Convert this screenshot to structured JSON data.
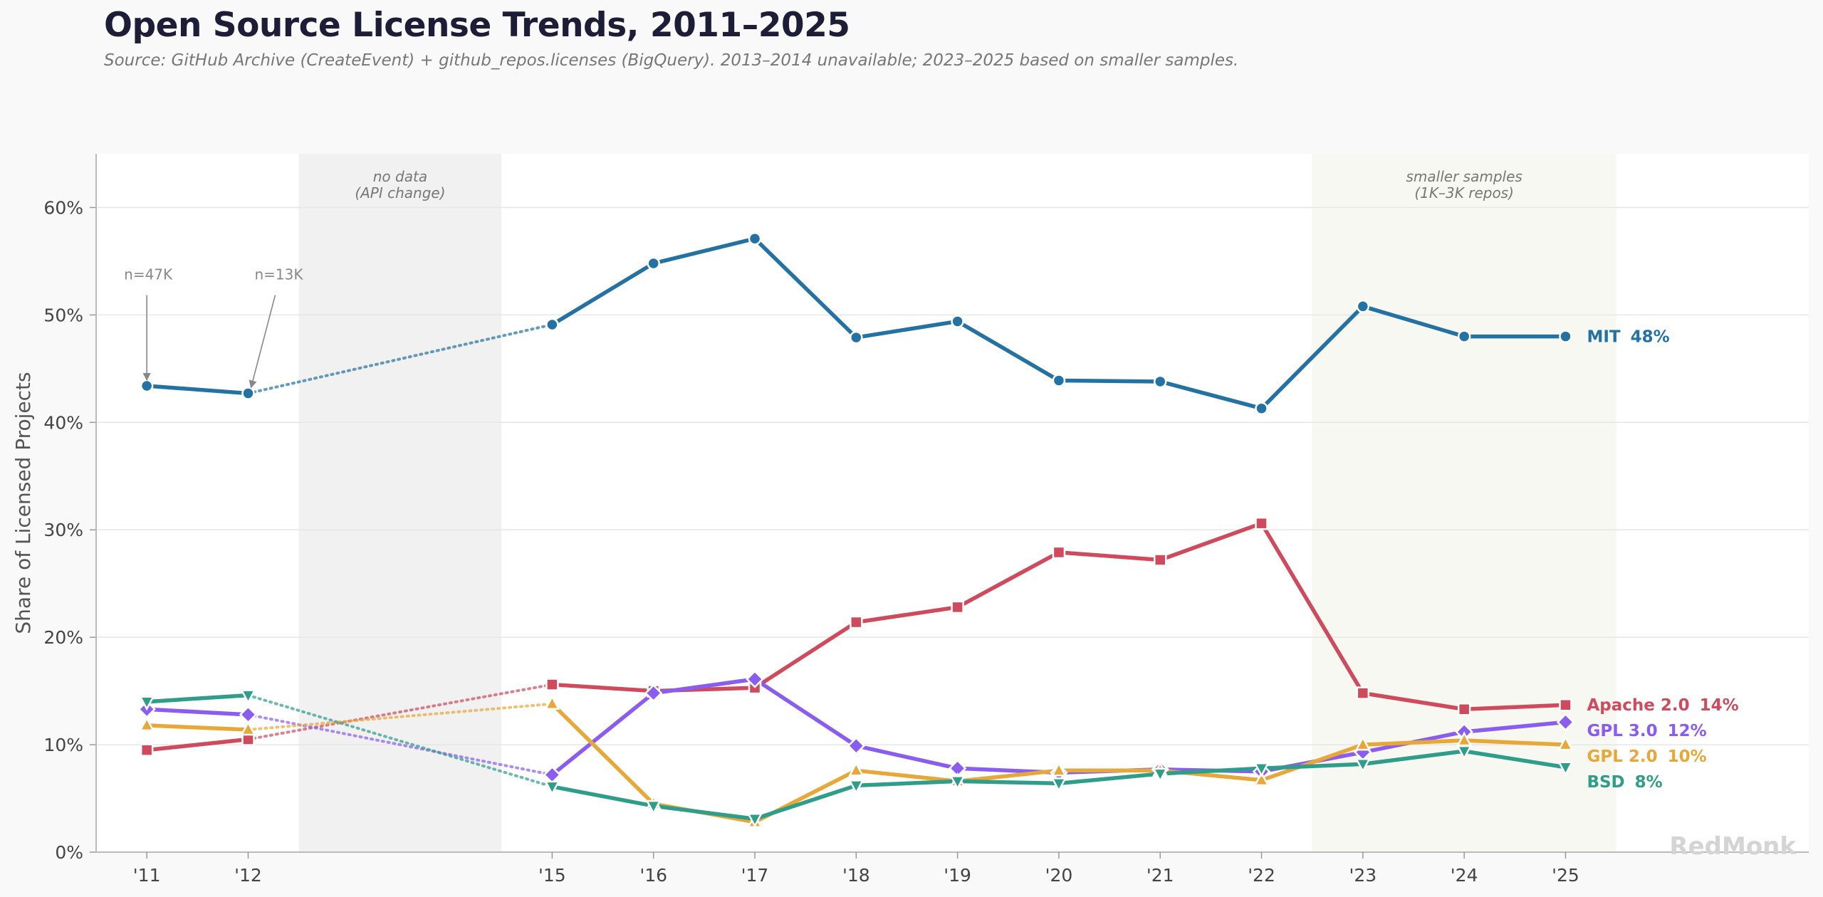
{
  "title": "Open Source License Trends, 2011–2025",
  "subtitle": "Source: GitHub Archive (CreateEvent) + github_repos.licenses (BigQuery). 2013–2014 unavailable; 2023–2025 based on smaller samples.",
  "watermark": "RedMonk",
  "chart_data": {
    "type": "line",
    "ylabel": "Share of Licensed Projects",
    "ylim": [
      0,
      65
    ],
    "yticks": [
      0,
      10,
      20,
      30,
      40,
      50,
      60
    ],
    "ytick_labels": [
      "0%",
      "10%",
      "20%",
      "30%",
      "40%",
      "50%",
      "60%"
    ],
    "x": [
      2011,
      2012,
      2015,
      2016,
      2017,
      2018,
      2019,
      2020,
      2021,
      2022,
      2023,
      2024,
      2025
    ],
    "xtick_labels": [
      "'11",
      "'12",
      "'15",
      "'16",
      "'17",
      "'18",
      "'19",
      "'20",
      "'21",
      "'22",
      "'23",
      "'24",
      "'25"
    ],
    "xlim": [
      2010.5,
      2027.4
    ],
    "grid": "horizontal",
    "bands": [
      {
        "from": 2012.5,
        "to": 2014.5,
        "label_lines": [
          "no data",
          "(API change)"
        ],
        "color": "#f1f1f1"
      },
      {
        "from": 2022.5,
        "to": 2025.5,
        "label_lines": [
          "smaller samples",
          "(1K–3K repos)"
        ],
        "color": "#f7f8f1"
      }
    ],
    "gap": {
      "from": 2012,
      "to": 2015,
      "style": "dotted"
    },
    "annotations": [
      {
        "text": "n=47K",
        "x": 2011,
        "y": 43.4
      },
      {
        "text": "n=13K",
        "x": 2012,
        "y": 42.7
      }
    ],
    "series": [
      {
        "name": "MIT",
        "end_label": "48%",
        "color": "#2471a3",
        "marker": "circle",
        "values": [
          43.4,
          42.7,
          49.1,
          54.8,
          57.1,
          47.9,
          49.4,
          43.9,
          43.8,
          41.3,
          50.8,
          48.0,
          48.0
        ]
      },
      {
        "name": "Apache 2.0",
        "end_label": "14%",
        "color": "#cf4a5c",
        "marker": "square",
        "values": [
          9.5,
          10.5,
          15.6,
          15.0,
          15.3,
          21.4,
          22.8,
          27.9,
          27.2,
          30.6,
          14.8,
          13.3,
          13.7
        ]
      },
      {
        "name": "GPL 3.0",
        "end_label": "12%",
        "color": "#8b5cf0",
        "marker": "diamond",
        "values": [
          13.3,
          12.8,
          7.2,
          14.8,
          16.1,
          9.9,
          7.8,
          7.4,
          7.7,
          7.5,
          9.3,
          11.2,
          12.1
        ]
      },
      {
        "name": "GPL 2.0",
        "end_label": "10%",
        "color": "#e8a838",
        "marker": "triangle-up",
        "values": [
          11.8,
          11.4,
          13.8,
          4.5,
          2.8,
          7.6,
          6.6,
          7.6,
          7.6,
          6.7,
          10.0,
          10.4,
          10.0
        ]
      },
      {
        "name": "BSD",
        "end_label": "8%",
        "color": "#2e9d8a",
        "marker": "triangle-down",
        "values": [
          14.0,
          14.6,
          6.1,
          4.3,
          3.1,
          6.2,
          6.6,
          6.4,
          7.3,
          7.8,
          8.2,
          9.4,
          7.9
        ]
      }
    ]
  }
}
